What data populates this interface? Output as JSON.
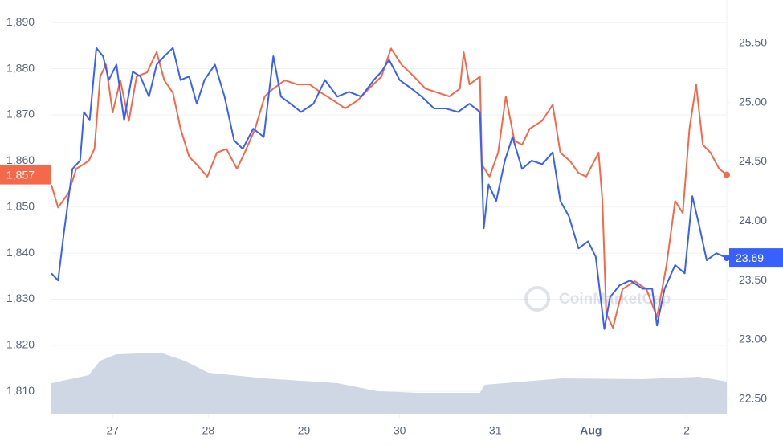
{
  "chart_data": {
    "type": "line",
    "watermark": "CoinMarketCap",
    "xlim": [
      26.36,
      33.42
    ],
    "xticks": [
      27,
      28,
      29,
      30,
      31,
      {
        "value": 32,
        "label": "Aug"
      },
      {
        "value": 33,
        "label": "2"
      }
    ],
    "ylim": [
      1805,
      1893
    ],
    "yticks": [
      {
        "value": 1810,
        "label": "1,810"
      },
      {
        "value": 1820,
        "label": "1,820"
      },
      {
        "value": 1830,
        "label": "1,830"
      },
      {
        "value": 1840,
        "label": "1,840"
      },
      {
        "value": 1850,
        "label": "1,850"
      },
      {
        "value": 1860,
        "label": "1,860"
      },
      {
        "value": 1870,
        "label": "1,870"
      },
      {
        "value": 1880,
        "label": "1,880"
      },
      {
        "value": 1890,
        "label": "1,890"
      }
    ],
    "y2lim": [
      22.37,
      25.79
    ],
    "y2ticks": [
      {
        "value": 22.5,
        "label": "22.50"
      },
      {
        "value": 23,
        "label": "23.00"
      },
      {
        "value": 23.5,
        "label": "23.50"
      },
      {
        "value": 24,
        "label": "24.00"
      },
      {
        "value": 24.5,
        "label": "24.50"
      },
      {
        "value": 25,
        "label": "25.00"
      },
      {
        "value": 25.5,
        "label": "25.50"
      }
    ],
    "grid": true,
    "series": [
      {
        "color": "#f5694b",
        "axis": "y",
        "current_label": {
          "value": 1857,
          "label": "1,857"
        },
        "x": [
          26.36,
          26.43,
          26.54,
          26.62,
          26.75,
          26.81,
          26.87,
          26.93,
          27.0,
          27.08,
          27.17,
          27.25,
          27.36,
          27.46,
          27.54,
          27.63,
          27.71,
          27.8,
          27.88,
          27.99,
          28.09,
          28.19,
          28.3,
          28.38,
          28.49,
          28.59,
          28.68,
          28.8,
          28.93,
          29.06,
          29.18,
          29.31,
          29.43,
          29.56,
          29.68,
          29.81,
          29.91,
          30.02,
          30.15,
          30.27,
          30.4,
          30.52,
          30.63,
          30.67,
          30.73,
          30.84,
          30.86,
          30.94,
          31.03,
          31.11,
          31.2,
          31.28,
          31.36,
          31.49,
          31.6,
          31.68,
          31.78,
          31.87,
          31.95,
          32.08,
          32.12,
          32.16,
          32.23,
          32.33,
          32.46,
          32.58,
          32.69,
          32.79,
          32.88,
          32.96,
          33.03,
          33.1,
          33.17,
          33.25,
          33.34,
          33.42
        ],
        "values": [
          1854.8,
          1849.9,
          1853.1,
          1858.3,
          1860.0,
          1862.6,
          1878.3,
          1880.9,
          1870.5,
          1877.5,
          1868.7,
          1878.3,
          1879.2,
          1883.6,
          1877.5,
          1874.8,
          1867.0,
          1860.9,
          1859.2,
          1856.6,
          1861.8,
          1862.6,
          1858.3,
          1861.8,
          1867.0,
          1874.0,
          1875.7,
          1877.5,
          1876.6,
          1876.6,
          1874.8,
          1873.1,
          1871.4,
          1873.1,
          1875.7,
          1878.3,
          1884.4,
          1880.9,
          1878.3,
          1875.7,
          1874.8,
          1874.0,
          1875.7,
          1883.6,
          1876.6,
          1878.3,
          1859.2,
          1856.6,
          1861.8,
          1874.0,
          1864.4,
          1863.5,
          1867.0,
          1868.7,
          1872.2,
          1861.8,
          1860.0,
          1857.4,
          1856.6,
          1861.8,
          1851.3,
          1826.9,
          1823.8,
          1832.2,
          1833.9,
          1832.2,
          1826.1,
          1837.4,
          1851.3,
          1848.7,
          1867.0,
          1876.6,
          1863.5,
          1861.8,
          1858.3,
          1857.0
        ]
      },
      {
        "color": "#3861fb",
        "axis": "y2",
        "current_label": {
          "value": 23.69,
          "label": "23.69"
        },
        "x": [
          26.36,
          26.43,
          26.49,
          26.58,
          26.66,
          26.7,
          26.76,
          26.83,
          26.9,
          26.96,
          27.04,
          27.12,
          27.21,
          27.29,
          27.38,
          27.46,
          27.54,
          27.63,
          27.71,
          27.8,
          27.88,
          27.96,
          28.07,
          28.17,
          28.27,
          28.36,
          28.47,
          28.58,
          28.68,
          28.76,
          28.86,
          28.97,
          29.1,
          29.22,
          29.35,
          29.47,
          29.6,
          29.73,
          29.81,
          29.89,
          30.0,
          30.12,
          30.23,
          30.36,
          30.48,
          30.61,
          30.73,
          30.84,
          30.88,
          30.93,
          31.01,
          31.1,
          31.18,
          31.28,
          31.38,
          31.49,
          31.6,
          31.68,
          31.77,
          31.87,
          31.97,
          32.05,
          32.14,
          32.2,
          32.3,
          32.41,
          32.54,
          32.64,
          32.69,
          32.77,
          32.88,
          32.98,
          33.06,
          33.13,
          33.21,
          33.31,
          33.42
        ],
        "values": [
          23.56,
          23.5,
          23.9,
          24.44,
          24.51,
          24.92,
          24.85,
          25.46,
          25.39,
          25.19,
          25.32,
          24.85,
          25.26,
          25.22,
          25.05,
          25.32,
          25.39,
          25.46,
          25.19,
          25.22,
          24.99,
          25.19,
          25.32,
          25.05,
          24.68,
          24.61,
          24.78,
          24.71,
          25.39,
          25.05,
          24.99,
          24.92,
          24.99,
          25.19,
          25.05,
          25.09,
          25.05,
          25.19,
          25.26,
          25.36,
          25.19,
          25.12,
          25.05,
          24.95,
          24.95,
          24.92,
          24.99,
          24.92,
          23.94,
          24.31,
          24.17,
          24.51,
          24.71,
          24.44,
          24.51,
          24.48,
          24.58,
          24.17,
          24.04,
          23.77,
          23.83,
          23.7,
          23.09,
          23.36,
          23.46,
          23.5,
          23.43,
          23.43,
          23.12,
          23.43,
          23.63,
          23.56,
          24.21,
          23.97,
          23.67,
          23.73,
          23.69
        ]
      }
    ],
    "volume": {
      "color": "#cfd6e4",
      "vlim": [
        0,
        100
      ],
      "x": [
        26.36,
        26.75,
        26.87,
        27.04,
        27.5,
        27.75,
        28.0,
        28.59,
        29.35,
        29.77,
        30.19,
        30.84,
        30.89,
        31.7,
        32.54,
        33.13,
        33.42
      ],
      "values": [
        39,
        49,
        67,
        75,
        77,
        67,
        52,
        45,
        39,
        29,
        27,
        27,
        37,
        45,
        44,
        47,
        41
      ]
    }
  }
}
